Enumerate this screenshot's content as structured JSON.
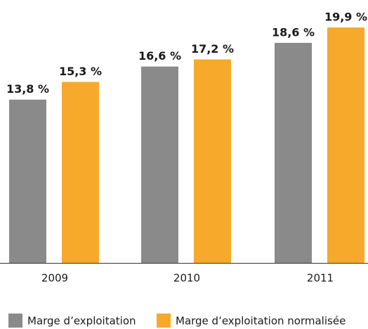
{
  "chart_data": {
    "type": "bar",
    "categories": [
      "2009",
      "2010",
      "2011"
    ],
    "series": [
      {
        "name": "Marge d’exploitation",
        "color": "#8a8a8a",
        "values": [
          13.8,
          16.6,
          18.6
        ],
        "value_labels": [
          "13,8 %",
          "16,6 %",
          "18,6 %"
        ]
      },
      {
        "name": "Marge d’exploitation normalisée",
        "color": "#f6a92b",
        "values": [
          15.3,
          17.2,
          19.9
        ],
        "value_labels": [
          "15,3 %",
          "17,2 %",
          "19,9 %"
        ]
      }
    ]
  }
}
